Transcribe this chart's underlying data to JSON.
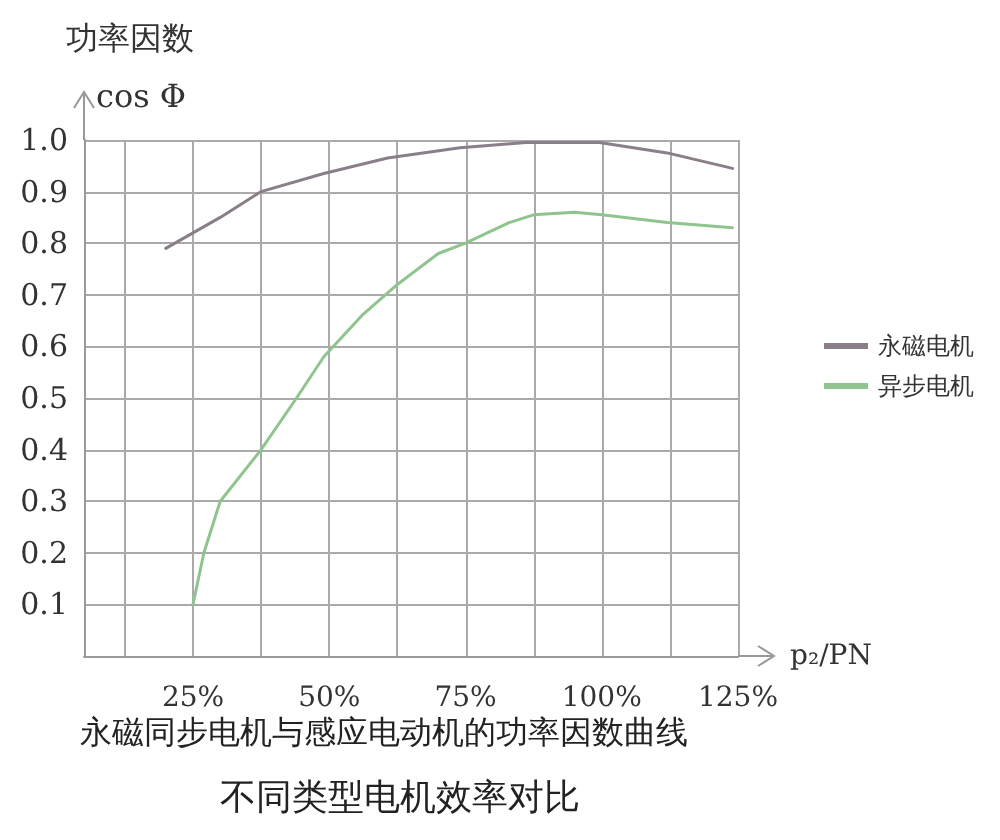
{
  "chart_data": {
    "type": "line",
    "title": "功率因数",
    "ylabel": "cos Φ",
    "xlabel": "p₂/PN",
    "annotations": [
      "永磁同步电机与感应电动机的功率因数曲线",
      "不同类型电机效率对比"
    ],
    "xlim": [
      5,
      125
    ],
    "xticks": [
      {
        "value": 12.5,
        "label": null
      },
      {
        "value": 25,
        "label": "25%"
      },
      {
        "value": 37.5,
        "label": null
      },
      {
        "value": 50,
        "label": "50%"
      },
      {
        "value": 62.5,
        "label": null
      },
      {
        "value": 75,
        "label": "75%"
      },
      {
        "value": 87.5,
        "label": null
      },
      {
        "value": 100,
        "label": "100%"
      },
      {
        "value": 112.5,
        "label": null
      },
      {
        "value": 125,
        "label": "125%"
      }
    ],
    "ylim": [
      0,
      1
    ],
    "yticks": [
      0.1,
      0.2,
      0.3,
      0.4,
      0.5,
      0.6,
      0.7,
      0.8,
      0.9,
      {
        "value": 1,
        "label": "1.0"
      }
    ],
    "grid": true,
    "legend": "right",
    "marker": "none",
    "line_style": "solid",
    "series": [
      {
        "name": "永磁电机",
        "color": "#8a7f88",
        "x": [
          20,
          30,
          37.5,
          49,
          60.7,
          74,
          86,
          99.6,
          112,
          124
        ],
        "values": [
          0.79,
          0.85,
          0.9,
          0.935,
          0.965,
          0.985,
          0.995,
          0.995,
          0.975,
          0.945
        ]
      },
      {
        "name": "异步电机",
        "color": "#8fc48f",
        "x": [
          25,
          27,
          30,
          37.5,
          44,
          49,
          56,
          62.5,
          70,
          75,
          83,
          87.5,
          95,
          100,
          112,
          124
        ],
        "values": [
          0.1,
          0.2,
          0.3,
          0.4,
          0.5,
          0.58,
          0.66,
          0.72,
          0.78,
          0.8,
          0.84,
          0.855,
          0.86,
          0.855,
          0.84,
          0.83
        ]
      }
    ]
  }
}
